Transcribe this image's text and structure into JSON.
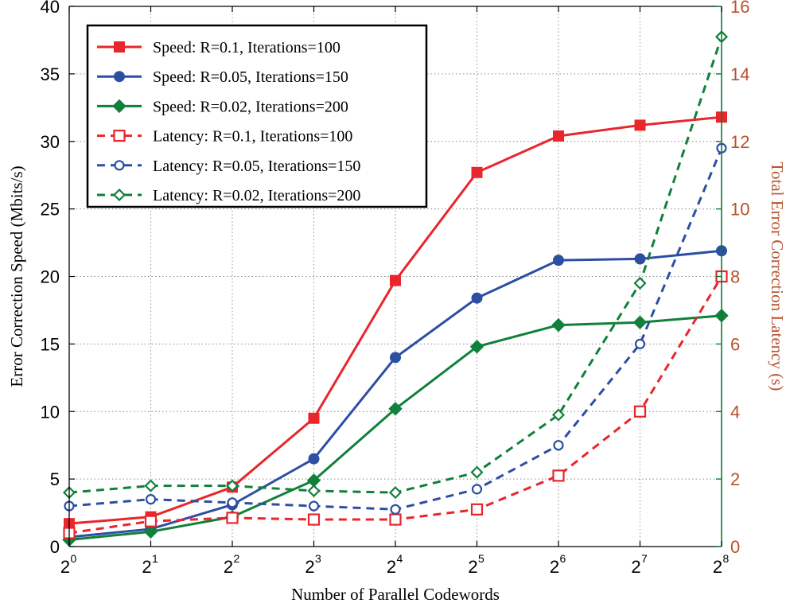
{
  "chart_data": {
    "type": "line",
    "xlabel": "Number of Parallel Codewords",
    "ylabel_left": "Error Correction Speed (Mbits/s)",
    "ylabel_right": "Total Error Correction Latency (s)",
    "x_tick_base": "2",
    "x_tick_exponents": [
      "0",
      "1",
      "2",
      "3",
      "4",
      "5",
      "6",
      "7",
      "8"
    ],
    "x": [
      1,
      2,
      4,
      8,
      16,
      32,
      64,
      128,
      256
    ],
    "x_scale": "log2",
    "ylim_left": [
      0,
      40
    ],
    "yticks_left": [
      "0",
      "5",
      "10",
      "15",
      "20",
      "25",
      "30",
      "35",
      "40"
    ],
    "ylim_right": [
      0,
      16
    ],
    "yticks_right": [
      "0",
      "2",
      "4",
      "6",
      "8",
      "10",
      "12",
      "14",
      "16"
    ],
    "grid": true,
    "legend_position": "top-left",
    "colors": {
      "red": "#e8262b",
      "blue": "#2c4fa3",
      "green": "#10803a",
      "right_axis": "#0c7a3a",
      "right_label": "#b5532d"
    },
    "series": [
      {
        "name": "Speed: R=0.1, Iterations=100",
        "axis": "left",
        "color": "#e8262b",
        "dash": "solid",
        "marker": "square-filled",
        "values": [
          1.7,
          2.2,
          4.4,
          9.5,
          19.7,
          27.7,
          30.4,
          31.2,
          31.8
        ]
      },
      {
        "name": "Speed: R=0.05, Iterations=150",
        "axis": "left",
        "color": "#2c4fa3",
        "dash": "solid",
        "marker": "circle-filled",
        "values": [
          0.7,
          1.3,
          3.1,
          6.5,
          14.0,
          18.4,
          21.2,
          21.3,
          21.9
        ]
      },
      {
        "name": "Speed: R=0.02, Iterations=200",
        "axis": "left",
        "color": "#10803a",
        "dash": "solid",
        "marker": "diamond-filled",
        "values": [
          0.5,
          1.1,
          2.2,
          4.9,
          10.2,
          14.8,
          16.4,
          16.6,
          17.1
        ]
      },
      {
        "name": "Latency: R=0.1, Iterations=100",
        "axis": "right",
        "color": "#e8262b",
        "dash": "dashed",
        "marker": "square-open",
        "values": [
          0.4,
          0.75,
          0.85,
          0.8,
          0.8,
          1.1,
          2.1,
          4.0,
          8.0
        ]
      },
      {
        "name": "Latency: R=0.05, Iterations=150",
        "axis": "right",
        "color": "#2c4fa3",
        "dash": "dashed",
        "marker": "circle-open",
        "values": [
          1.2,
          1.4,
          1.3,
          1.2,
          1.1,
          1.7,
          3.0,
          6.0,
          11.8
        ]
      },
      {
        "name": "Latency: R=0.02, Iterations=200",
        "axis": "right",
        "color": "#10803a",
        "dash": "dashed",
        "marker": "diamond-open",
        "values": [
          1.6,
          1.8,
          1.8,
          1.65,
          1.6,
          2.2,
          3.9,
          7.8,
          15.1
        ]
      }
    ]
  }
}
